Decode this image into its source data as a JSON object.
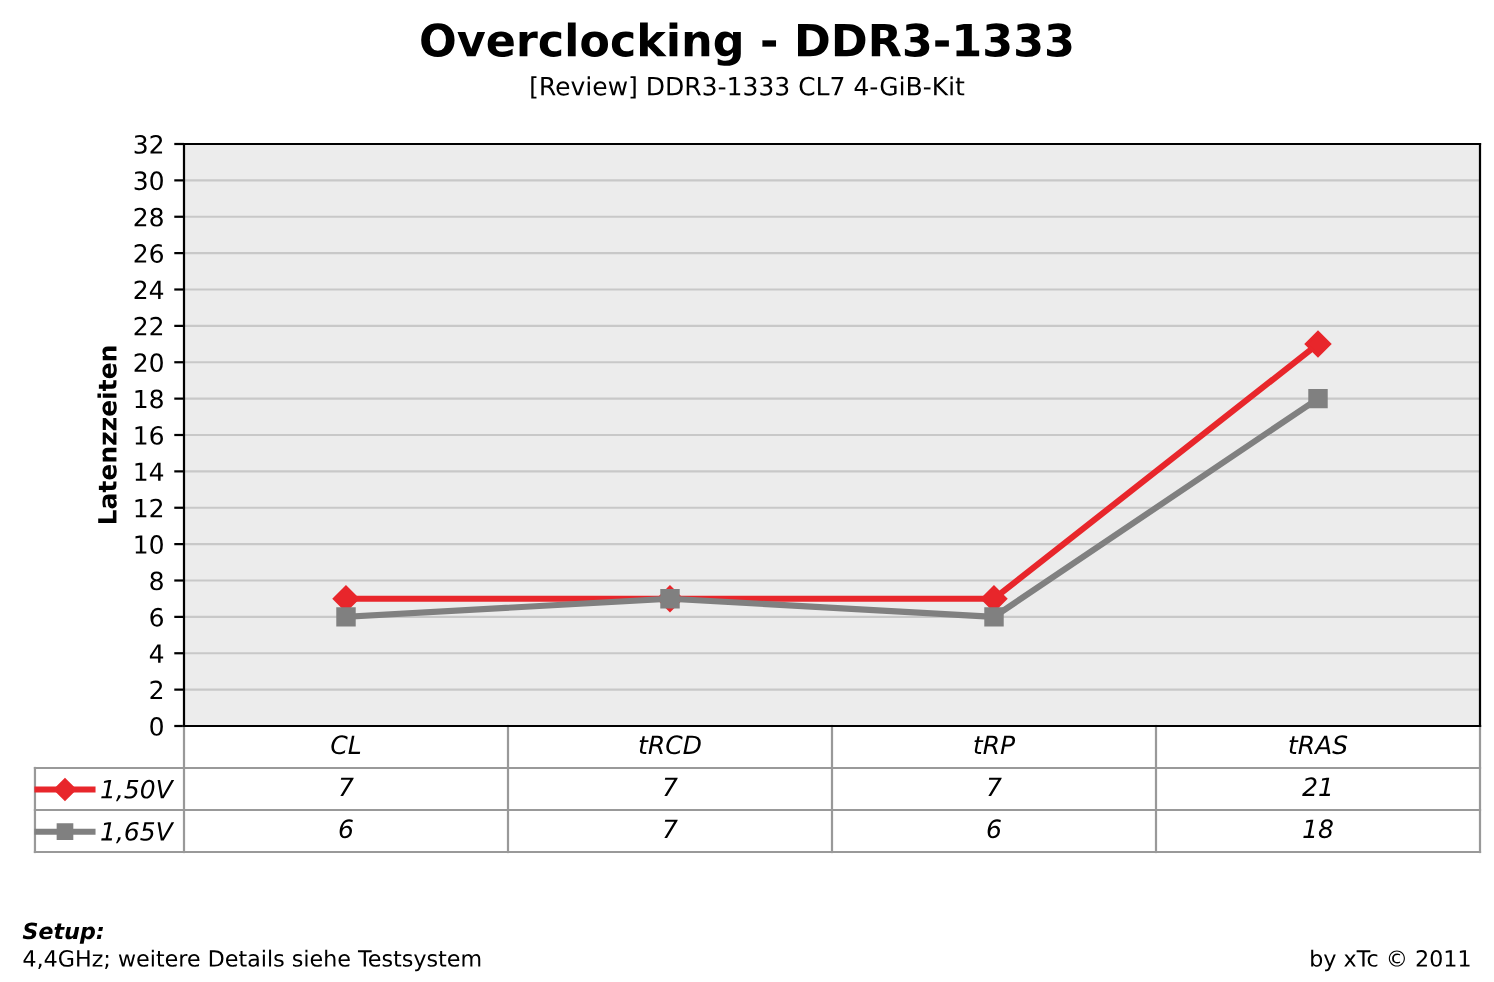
{
  "chart_data": {
    "type": "line",
    "title": "Overclocking - DDR3-1333",
    "subtitle": "[Review] DDR3-1333 CL7 4-GiB-Kit",
    "ylabel": "Latenzzeiten",
    "categories": [
      "CL",
      "tRCD",
      "tRP",
      "tRAS"
    ],
    "series": [
      {
        "name": "1,50V",
        "color": "#e8262b",
        "marker": "diamond",
        "values": [
          7,
          7,
          7,
          21
        ]
      },
      {
        "name": "1,65V",
        "color": "#808080",
        "marker": "square",
        "values": [
          6,
          7,
          6,
          18
        ]
      }
    ],
    "ylim": [
      0,
      32
    ],
    "yticks": [
      0,
      2,
      4,
      6,
      8,
      10,
      12,
      14,
      16,
      18,
      20,
      22,
      24,
      26,
      28,
      30,
      32
    ],
    "grid": "y",
    "legend": "bottom",
    "data_labels": true,
    "line_style": "solid",
    "annotations": [
      "Setup:",
      "4,4GHz; weitere Details siehe Testsystem",
      "by xTc © 2011"
    ]
  }
}
